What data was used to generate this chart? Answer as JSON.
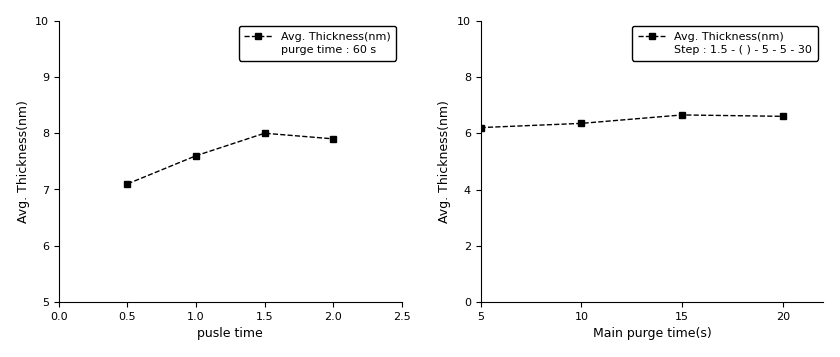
{
  "left": {
    "x": [
      0.5,
      1.0,
      1.5,
      2.0
    ],
    "y": [
      7.1,
      7.6,
      8.0,
      7.9
    ],
    "xlim": [
      0.0,
      2.5
    ],
    "ylim": [
      5,
      10
    ],
    "xticks": [
      0.0,
      0.5,
      1.0,
      1.5,
      2.0,
      2.5
    ],
    "yticks": [
      5,
      6,
      7,
      8,
      9,
      10
    ],
    "xlabel": "pusle time",
    "ylabel": "Avg. Thickness(nm)",
    "legend_label": "Avg. Thickness(nm)",
    "legend_note": "purge time : 60 s"
  },
  "right": {
    "x": [
      5,
      10,
      15,
      20
    ],
    "y": [
      6.2,
      6.35,
      6.65,
      6.6
    ],
    "xlim": [
      5,
      22
    ],
    "ylim": [
      0,
      10
    ],
    "xticks": [
      5,
      10,
      15,
      20
    ],
    "yticks": [
      0,
      2,
      4,
      6,
      8,
      10
    ],
    "xlabel": "Main purge time(s)",
    "ylabel": "Avg. Thickness(nm)",
    "legend_label": "Avg. Thickness(nm)",
    "legend_note": "Step : 1.5 - ( ) - 5 - 5 - 30"
  },
  "line_color": "#000000",
  "marker": "s",
  "marker_size": 5,
  "line_style": "--",
  "line_width": 1.0,
  "font_size": 8,
  "label_font_size": 9,
  "legend_fontsize": 8
}
